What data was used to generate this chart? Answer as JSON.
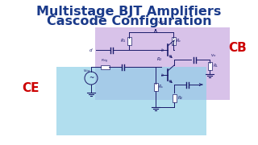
{
  "title_line1": "Multistage BJT Amplifiers",
  "title_line2": "Cascode Configuration",
  "title_color": "#1a3a8a",
  "title_fontsize": 11.5,
  "bg_color": "#ffffff",
  "cb_label": "CB",
  "ce_label": "CE",
  "cb_label_color": "#cc0000",
  "ce_label_color": "#cc0000",
  "cb_label_fontsize": 11,
  "ce_label_fontsize": 11,
  "cb_box_color": "#c8a8e0",
  "ce_box_color": "#90d0e8",
  "wire_color": "#1a1a6a",
  "wire_lw": 0.7
}
